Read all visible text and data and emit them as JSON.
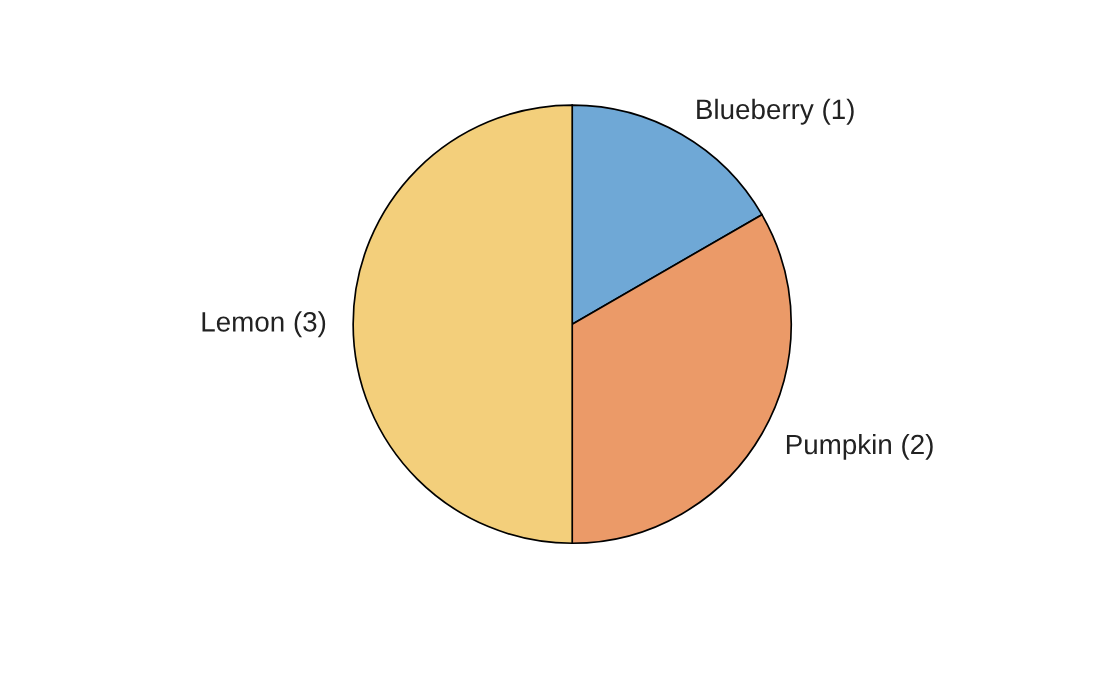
{
  "chart_data": {
    "type": "pie",
    "categories": [
      "Blueberry (1)",
      "Pumpkin (2)",
      "Lemon (3)"
    ],
    "values": [
      1,
      2,
      3
    ],
    "colors": [
      "#6fa8d6",
      "#eb9a68",
      "#f3cf7b"
    ]
  }
}
